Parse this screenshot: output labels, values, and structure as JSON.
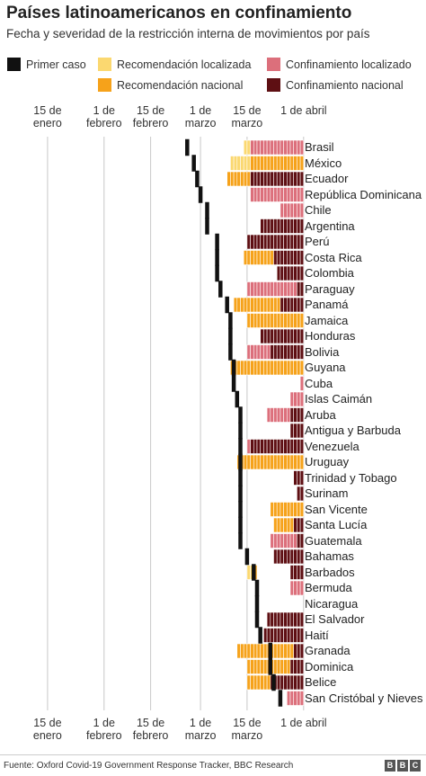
{
  "title": "Países latinoamericanos en confinamiento",
  "subtitle": "Fecha y severidad de la restricción interna de movimientos por país",
  "legend": {
    "first_case": "Primer caso",
    "rec_localized": "Recomendación localizada",
    "conf_localized": "Confinamiento localizado",
    "rec_national": "Recomendación nacional",
    "conf_national": "Confinamiento nacional"
  },
  "colors": {
    "first_case": "#111111",
    "rec_localized": "#fbd870",
    "rec_national": "#f6a21a",
    "conf_localized": "#dc6f7b",
    "conf_national": "#5e0f13",
    "gridline": "#c8c8c8"
  },
  "axis": {
    "ticks": [
      {
        "label": "15 de enero",
        "date": "2020-01-15"
      },
      {
        "label": "1 de febrero",
        "date": "2020-02-01"
      },
      {
        "label": "15 de febrero",
        "date": "2020-02-15"
      },
      {
        "label": "1 de marzo",
        "date": "2020-03-01"
      },
      {
        "label": "15 de marzo",
        "date": "2020-03-15"
      },
      {
        "label": "1 de abril",
        "date": "2020-04-01"
      }
    ]
  },
  "chart_data": {
    "type": "timeline",
    "x_range": [
      "2020-01-08",
      "2020-04-03"
    ],
    "status_key": {
      "rl": "Recomendación localizada",
      "rn": "Recomendación nacional",
      "cl": "Confinamiento localizado",
      "cn": "Confinamiento nacional"
    },
    "countries": [
      {
        "name": "Brasil",
        "first_case": "2020-02-26",
        "segments": [
          {
            "start": "2020-03-14",
            "end": "2020-03-16",
            "status": "rl"
          },
          {
            "start": "2020-03-16",
            "end": "2020-04-01",
            "status": "cl"
          }
        ]
      },
      {
        "name": "México",
        "first_case": "2020-02-28",
        "segments": [
          {
            "start": "2020-03-10",
            "end": "2020-03-16",
            "status": "rl"
          },
          {
            "start": "2020-03-16",
            "end": "2020-04-01",
            "status": "rn"
          }
        ]
      },
      {
        "name": "Ecuador",
        "first_case": "2020-02-29",
        "segments": [
          {
            "start": "2020-03-09",
            "end": "2020-03-16",
            "status": "rn"
          },
          {
            "start": "2020-03-16",
            "end": "2020-04-01",
            "status": "cn"
          }
        ]
      },
      {
        "name": "República Dominicana",
        "first_case": "2020-03-01",
        "segments": [
          {
            "start": "2020-03-16",
            "end": "2020-04-01",
            "status": "cl"
          }
        ]
      },
      {
        "name": "Chile",
        "first_case": "2020-03-03",
        "segments": [
          {
            "start": "2020-03-25",
            "end": "2020-04-01",
            "status": "cl"
          }
        ]
      },
      {
        "name": "Argentina",
        "first_case": "2020-03-03",
        "segments": [
          {
            "start": "2020-03-19",
            "end": "2020-04-01",
            "status": "cn"
          }
        ]
      },
      {
        "name": "Perú",
        "first_case": "2020-03-06",
        "segments": [
          {
            "start": "2020-03-15",
            "end": "2020-04-01",
            "status": "cn"
          }
        ]
      },
      {
        "name": "Costa Rica",
        "first_case": "2020-03-06",
        "segments": [
          {
            "start": "2020-03-14",
            "end": "2020-03-23",
            "status": "rn"
          },
          {
            "start": "2020-03-23",
            "end": "2020-04-01",
            "status": "cn"
          }
        ]
      },
      {
        "name": "Colombia",
        "first_case": "2020-03-06",
        "segments": [
          {
            "start": "2020-03-24",
            "end": "2020-04-01",
            "status": "cn"
          }
        ]
      },
      {
        "name": "Paraguay",
        "first_case": "2020-03-07",
        "segments": [
          {
            "start": "2020-03-15",
            "end": "2020-03-30",
            "status": "cl"
          },
          {
            "start": "2020-03-30",
            "end": "2020-04-01",
            "status": "cn"
          }
        ]
      },
      {
        "name": "Panamá",
        "first_case": "2020-03-09",
        "segments": [
          {
            "start": "2020-03-11",
            "end": "2020-03-25",
            "status": "rn"
          },
          {
            "start": "2020-03-25",
            "end": "2020-04-01",
            "status": "cn"
          }
        ]
      },
      {
        "name": "Jamaica",
        "first_case": "2020-03-10",
        "segments": [
          {
            "start": "2020-03-15",
            "end": "2020-04-01",
            "status": "rn"
          }
        ]
      },
      {
        "name": "Honduras",
        "first_case": "2020-03-10",
        "segments": [
          {
            "start": "2020-03-19",
            "end": "2020-04-01",
            "status": "cn"
          }
        ]
      },
      {
        "name": "Bolivia",
        "first_case": "2020-03-10",
        "segments": [
          {
            "start": "2020-03-15",
            "end": "2020-03-22",
            "status": "cl"
          },
          {
            "start": "2020-03-22",
            "end": "2020-04-01",
            "status": "cn"
          }
        ]
      },
      {
        "name": "Guyana",
        "first_case": "2020-03-11",
        "segments": [
          {
            "start": "2020-03-10",
            "end": "2020-04-01",
            "status": "rn"
          }
        ]
      },
      {
        "name": "Cuba",
        "first_case": "2020-03-11",
        "segments": [
          {
            "start": "2020-03-31",
            "end": "2020-04-01",
            "status": "cl"
          }
        ]
      },
      {
        "name": "Islas Caimán",
        "first_case": "2020-03-12",
        "segments": [
          {
            "start": "2020-03-28",
            "end": "2020-04-01",
            "status": "cl"
          }
        ]
      },
      {
        "name": "Aruba",
        "first_case": "2020-03-13",
        "segments": [
          {
            "start": "2020-03-21",
            "end": "2020-03-28",
            "status": "cl"
          },
          {
            "start": "2020-03-28",
            "end": "2020-04-01",
            "status": "cn"
          }
        ]
      },
      {
        "name": "Antigua y Barbuda",
        "first_case": "2020-03-13",
        "segments": [
          {
            "start": "2020-03-28",
            "end": "2020-04-01",
            "status": "cn"
          }
        ]
      },
      {
        "name": "Venezuela",
        "first_case": "2020-03-13",
        "segments": [
          {
            "start": "2020-03-15",
            "end": "2020-03-16",
            "status": "cl"
          },
          {
            "start": "2020-03-16",
            "end": "2020-04-01",
            "status": "cn"
          }
        ]
      },
      {
        "name": "Uruguay",
        "first_case": "2020-03-13",
        "segments": [
          {
            "start": "2020-03-12",
            "end": "2020-04-01",
            "status": "rn"
          }
        ]
      },
      {
        "name": "Trinidad y Tobago",
        "first_case": "2020-03-13",
        "segments": [
          {
            "start": "2020-03-29",
            "end": "2020-04-01",
            "status": "cn"
          }
        ]
      },
      {
        "name": "Surinam",
        "first_case": "2020-03-13",
        "segments": [
          {
            "start": "2020-03-30",
            "end": "2020-04-01",
            "status": "cn"
          }
        ]
      },
      {
        "name": "San Vicente",
        "first_case": "2020-03-13",
        "segments": [
          {
            "start": "2020-03-22",
            "end": "2020-04-01",
            "status": "rn"
          }
        ]
      },
      {
        "name": "Santa Lucía",
        "first_case": "2020-03-13",
        "segments": [
          {
            "start": "2020-03-23",
            "end": "2020-03-29",
            "status": "rn"
          },
          {
            "start": "2020-03-29",
            "end": "2020-04-01",
            "status": "cn"
          }
        ]
      },
      {
        "name": "Guatemala",
        "first_case": "2020-03-13",
        "segments": [
          {
            "start": "2020-03-22",
            "end": "2020-03-30",
            "status": "cl"
          },
          {
            "start": "2020-03-30",
            "end": "2020-04-01",
            "status": "cn"
          }
        ]
      },
      {
        "name": "Bahamas",
        "first_case": "2020-03-15",
        "segments": [
          {
            "start": "2020-03-23",
            "end": "2020-04-01",
            "status": "cn"
          }
        ]
      },
      {
        "name": "Barbados",
        "first_case": "2020-03-17",
        "segments": [
          {
            "start": "2020-03-15",
            "end": "2020-03-17",
            "status": "rl"
          },
          {
            "start": "2020-03-17",
            "end": "2020-03-18",
            "status": "rn"
          },
          {
            "start": "2020-03-28",
            "end": "2020-04-01",
            "status": "cn"
          }
        ]
      },
      {
        "name": "Bermuda",
        "first_case": "2020-03-18",
        "segments": [
          {
            "start": "2020-03-28",
            "end": "2020-04-01",
            "status": "cl"
          }
        ]
      },
      {
        "name": "Nicaragua",
        "first_case": "2020-03-18",
        "segments": []
      },
      {
        "name": "El Salvador",
        "first_case": "2020-03-18",
        "segments": [
          {
            "start": "2020-03-21",
            "end": "2020-04-01",
            "status": "cn"
          }
        ]
      },
      {
        "name": "Haití",
        "first_case": "2020-03-19",
        "segments": [
          {
            "start": "2020-03-20",
            "end": "2020-04-01",
            "status": "cn"
          }
        ]
      },
      {
        "name": "Granada",
        "first_case": "2020-03-22",
        "segments": [
          {
            "start": "2020-03-12",
            "end": "2020-03-29",
            "status": "rn"
          },
          {
            "start": "2020-03-29",
            "end": "2020-04-01",
            "status": "cn"
          }
        ]
      },
      {
        "name": "Dominica",
        "first_case": "2020-03-22",
        "segments": [
          {
            "start": "2020-03-15",
            "end": "2020-03-28",
            "status": "rn"
          },
          {
            "start": "2020-03-28",
            "end": "2020-04-01",
            "status": "cn"
          }
        ]
      },
      {
        "name": "Belice",
        "first_case": "2020-03-23",
        "segments": [
          {
            "start": "2020-03-15",
            "end": "2020-03-22",
            "status": "rn"
          },
          {
            "start": "2020-03-22",
            "end": "2020-04-01",
            "status": "cn"
          }
        ]
      },
      {
        "name": "San Cristóbal y Nieves",
        "first_case": "2020-03-25",
        "segments": [
          {
            "start": "2020-03-27",
            "end": "2020-04-01",
            "status": "cl"
          }
        ]
      }
    ]
  },
  "footer": {
    "source": "Fuente: Oxford Covid-19 Government Response Tracker, BBC Research",
    "logo": [
      "B",
      "B",
      "C"
    ]
  }
}
